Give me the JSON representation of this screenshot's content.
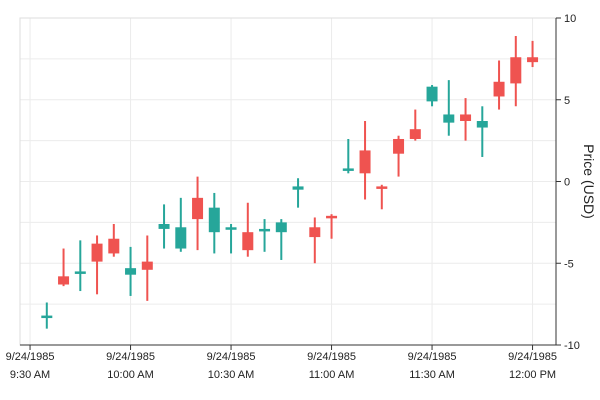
{
  "chart_data": {
    "type": "candlestick",
    "ylabel": "Price (USD)",
    "ylim": [
      -10,
      10
    ],
    "y_ticks": [
      10,
      5,
      0,
      -5,
      -10
    ],
    "y_axis_side": "right",
    "grid": true,
    "colors": {
      "up": "#26a69a",
      "down": "#ef5350",
      "grid": "#ececec",
      "axis": "#333333",
      "frame": "#dddddd"
    },
    "x_range": [
      "09:27",
      "12:07"
    ],
    "x_ticks": [
      {
        "time": "09:30",
        "date": "9/24/1985",
        "label": "9:30 AM"
      },
      {
        "time": "10:00",
        "date": "9/24/1985",
        "label": "10:00 AM"
      },
      {
        "time": "10:30",
        "date": "9/24/1985",
        "label": "10:30 AM"
      },
      {
        "time": "11:00",
        "date": "9/24/1985",
        "label": "11:00 AM"
      },
      {
        "time": "11:30",
        "date": "9/24/1985",
        "label": "11:30 AM"
      },
      {
        "time": "12:00",
        "date": "9/24/1985",
        "label": "12:00 PM"
      }
    ],
    "candles": [
      {
        "time": "09:35",
        "open": -8.3,
        "high": -7.4,
        "low": -9.0,
        "close": -8.2
      },
      {
        "time": "09:40",
        "open": -5.8,
        "high": -4.1,
        "low": -6.4,
        "close": -6.3
      },
      {
        "time": "09:45",
        "open": -5.6,
        "high": -3.6,
        "low": -6.7,
        "close": -5.5
      },
      {
        "time": "09:50",
        "open": -3.8,
        "high": -3.3,
        "low": -6.9,
        "close": -4.9
      },
      {
        "time": "09:55",
        "open": -3.5,
        "high": -2.6,
        "low": -4.6,
        "close": -4.4
      },
      {
        "time": "10:00",
        "open": -5.7,
        "high": -4.0,
        "low": -7.0,
        "close": -5.3
      },
      {
        "time": "10:05",
        "open": -4.9,
        "high": -3.3,
        "low": -7.3,
        "close": -5.4
      },
      {
        "time": "10:10",
        "open": -2.9,
        "high": -1.4,
        "low": -4.1,
        "close": -2.6
      },
      {
        "time": "10:15",
        "open": -4.1,
        "high": -1.0,
        "low": -4.3,
        "close": -2.8
      },
      {
        "time": "10:20",
        "open": -1.0,
        "high": 0.3,
        "low": -4.2,
        "close": -2.3
      },
      {
        "time": "10:25",
        "open": -3.1,
        "high": -0.7,
        "low": -4.4,
        "close": -1.6
      },
      {
        "time": "10:30",
        "open": -2.9,
        "high": -2.6,
        "low": -4.4,
        "close": -2.8
      },
      {
        "time": "10:35",
        "open": -3.1,
        "high": -1.3,
        "low": -4.6,
        "close": -4.2
      },
      {
        "time": "10:40",
        "open": -3.0,
        "high": -2.3,
        "low": -4.3,
        "close": -2.9
      },
      {
        "time": "10:45",
        "open": -3.1,
        "high": -2.3,
        "low": -4.8,
        "close": -2.5
      },
      {
        "time": "10:50",
        "open": -0.5,
        "high": 0.2,
        "low": -1.6,
        "close": -0.3
      },
      {
        "time": "10:55",
        "open": -2.8,
        "high": -2.2,
        "low": -5.0,
        "close": -3.4
      },
      {
        "time": "11:00",
        "open": -2.1,
        "high": -2.0,
        "low": -3.5,
        "close": -2.2
      },
      {
        "time": "11:05",
        "open": 0.7,
        "high": 2.6,
        "low": 0.5,
        "close": 0.8
      },
      {
        "time": "11:10",
        "open": 1.9,
        "high": 3.7,
        "low": -1.1,
        "close": 0.5
      },
      {
        "time": "11:15",
        "open": -0.3,
        "high": -0.2,
        "low": -1.7,
        "close": -0.4
      },
      {
        "time": "11:20",
        "open": 2.6,
        "high": 2.8,
        "low": 0.3,
        "close": 1.7
      },
      {
        "time": "11:25",
        "open": 3.2,
        "high": 4.4,
        "low": 2.5,
        "close": 2.6
      },
      {
        "time": "11:30",
        "open": 4.9,
        "high": 5.9,
        "low": 4.6,
        "close": 5.8
      },
      {
        "time": "11:35",
        "open": 3.6,
        "high": 6.2,
        "low": 2.8,
        "close": 4.1
      },
      {
        "time": "11:40",
        "open": 4.1,
        "high": 5.1,
        "low": 2.5,
        "close": 3.7
      },
      {
        "time": "11:45",
        "open": 3.3,
        "high": 4.6,
        "low": 1.5,
        "close": 3.7
      },
      {
        "time": "11:50",
        "open": 6.1,
        "high": 7.4,
        "low": 4.4,
        "close": 5.2
      },
      {
        "time": "11:55",
        "open": 7.6,
        "high": 8.9,
        "low": 4.6,
        "close": 6.0
      },
      {
        "time": "12:00",
        "open": 7.6,
        "high": 8.6,
        "low": 7.0,
        "close": 7.3
      }
    ]
  }
}
